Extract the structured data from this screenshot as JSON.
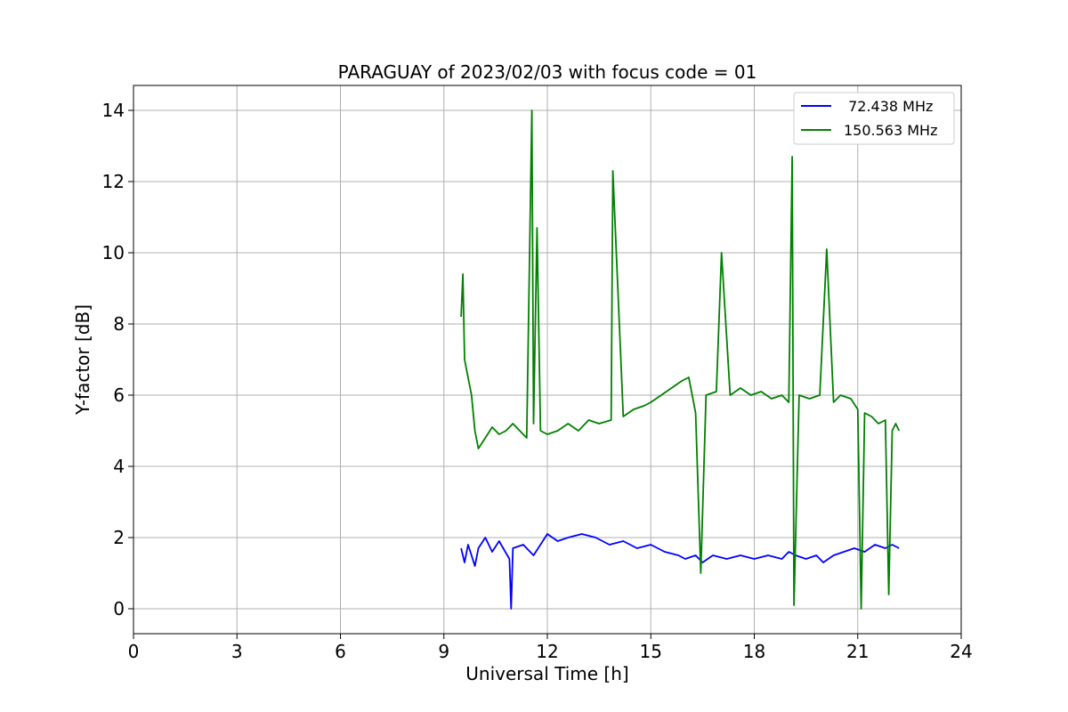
{
  "chart_data": {
    "type": "line",
    "title": "PARAGUAY of 2023/02/03 with focus code = 01",
    "xlabel": "Universal Time [h]",
    "ylabel": "Y-factor [dB]",
    "xlim": [
      0,
      24
    ],
    "ylim": [
      -0.7,
      14.7
    ],
    "xticks": [
      0,
      3,
      6,
      9,
      12,
      15,
      18,
      21,
      24
    ],
    "yticks": [
      0,
      2,
      4,
      6,
      8,
      10,
      12,
      14
    ],
    "xtick_labels": [
      "0",
      "3",
      "6",
      "9",
      "12",
      "15",
      "18",
      "21",
      "24"
    ],
    "ytick_labels": [
      "0",
      "2",
      "4",
      "6",
      "8",
      "10",
      "12",
      "14"
    ],
    "grid": true,
    "legend_position": "top-right",
    "series": [
      {
        "name": " 72.438 MHz",
        "color": "#0000ff",
        "x": [
          9.5,
          9.6,
          9.7,
          9.8,
          9.9,
          10.0,
          10.2,
          10.4,
          10.6,
          10.9,
          10.95,
          11.0,
          11.3,
          11.6,
          12.0,
          12.3,
          12.6,
          13.0,
          13.4,
          13.8,
          14.2,
          14.6,
          15.0,
          15.4,
          15.8,
          16.0,
          16.3,
          16.5,
          16.8,
          17.2,
          17.6,
          18.0,
          18.4,
          18.8,
          19.0,
          19.2,
          19.5,
          19.8,
          20.0,
          20.3,
          20.6,
          20.9,
          21.2,
          21.5,
          21.8,
          22.0,
          22.2
        ],
        "y": [
          1.7,
          1.3,
          1.8,
          1.5,
          1.2,
          1.7,
          2.0,
          1.6,
          1.9,
          1.4,
          0.0,
          1.7,
          1.8,
          1.5,
          2.1,
          1.9,
          2.0,
          2.1,
          2.0,
          1.8,
          1.9,
          1.7,
          1.8,
          1.6,
          1.5,
          1.4,
          1.5,
          1.3,
          1.5,
          1.4,
          1.5,
          1.4,
          1.5,
          1.4,
          1.6,
          1.5,
          1.4,
          1.5,
          1.3,
          1.5,
          1.6,
          1.7,
          1.6,
          1.8,
          1.7,
          1.8,
          1.7
        ]
      },
      {
        "name": "150.563 MHz",
        "color": "#008000",
        "x": [
          9.5,
          9.55,
          9.6,
          9.7,
          9.8,
          9.9,
          10.0,
          10.2,
          10.4,
          10.6,
          10.8,
          11.0,
          11.2,
          11.4,
          11.55,
          11.6,
          11.7,
          11.8,
          12.0,
          12.3,
          12.6,
          12.9,
          13.2,
          13.5,
          13.85,
          13.9,
          14.2,
          14.5,
          14.8,
          15.0,
          15.3,
          15.6,
          15.9,
          16.1,
          16.3,
          16.45,
          16.6,
          16.9,
          17.05,
          17.3,
          17.6,
          17.9,
          18.2,
          18.5,
          18.8,
          19.0,
          19.1,
          19.15,
          19.3,
          19.6,
          19.9,
          20.1,
          20.3,
          20.5,
          20.8,
          21.0,
          21.1,
          21.2,
          21.4,
          21.6,
          21.8,
          21.9,
          22.0,
          22.1,
          22.2
        ],
        "y": [
          8.2,
          9.4,
          7.0,
          6.5,
          6.0,
          5.0,
          4.5,
          4.8,
          5.1,
          4.9,
          5.0,
          5.2,
          5.0,
          4.8,
          14.0,
          5.2,
          10.7,
          5.0,
          4.9,
          5.0,
          5.2,
          5.0,
          5.3,
          5.2,
          5.3,
          12.3,
          5.4,
          5.6,
          5.7,
          5.8,
          6.0,
          6.2,
          6.4,
          6.5,
          5.5,
          1.0,
          6.0,
          6.1,
          10.0,
          6.0,
          6.2,
          6.0,
          6.1,
          5.9,
          6.0,
          5.8,
          12.7,
          0.1,
          6.0,
          5.9,
          6.0,
          10.1,
          5.8,
          6.0,
          5.9,
          5.6,
          0.0,
          5.5,
          5.4,
          5.2,
          5.3,
          0.4,
          5.0,
          5.2,
          5.0
        ]
      }
    ]
  }
}
